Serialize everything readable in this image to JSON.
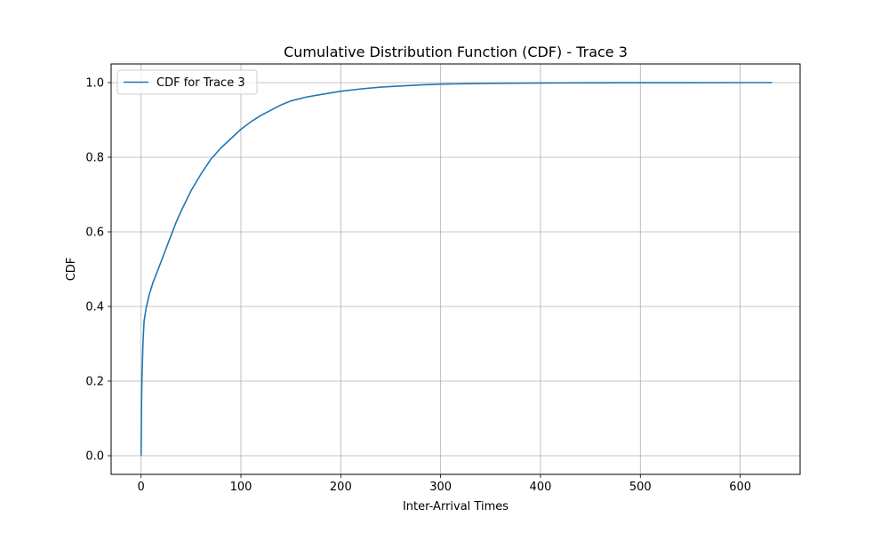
{
  "chart_data": {
    "type": "line",
    "title": "Cumulative Distribution Function (CDF) - Trace 3",
    "xlabel": "Inter-Arrival Times",
    "ylabel": "CDF",
    "xlim": [
      -30,
      660
    ],
    "ylim": [
      -0.05,
      1.05
    ],
    "xticks": [
      0,
      100,
      200,
      300,
      400,
      500,
      600
    ],
    "yticks": [
      0.0,
      0.2,
      0.4,
      0.6,
      0.8,
      1.0
    ],
    "xtick_labels": [
      "0",
      "100",
      "200",
      "300",
      "400",
      "500",
      "600"
    ],
    "ytick_labels": [
      "0.0",
      "0.2",
      "0.4",
      "0.6",
      "0.8",
      "1.0"
    ],
    "grid": true,
    "legend_position": "top-left",
    "series": [
      {
        "name": "CDF for Trace 3",
        "color": "#1f77b4",
        "x": [
          0,
          0.5,
          1,
          2,
          3,
          5,
          8,
          12,
          15,
          20,
          25,
          30,
          35,
          40,
          50,
          60,
          70,
          80,
          90,
          100,
          110,
          120,
          130,
          140,
          150,
          165,
          180,
          200,
          220,
          240,
          260,
          280,
          300,
          350,
          400,
          450,
          500,
          550,
          600,
          632
        ],
        "y": [
          0.0,
          0.15,
          0.22,
          0.31,
          0.36,
          0.395,
          0.43,
          0.465,
          0.485,
          0.52,
          0.555,
          0.59,
          0.625,
          0.655,
          0.71,
          0.755,
          0.795,
          0.825,
          0.85,
          0.875,
          0.895,
          0.912,
          0.926,
          0.94,
          0.951,
          0.961,
          0.968,
          0.977,
          0.983,
          0.988,
          0.991,
          0.994,
          0.996,
          0.998,
          0.999,
          0.9995,
          0.9998,
          0.9999,
          1.0,
          1.0
        ]
      }
    ]
  }
}
